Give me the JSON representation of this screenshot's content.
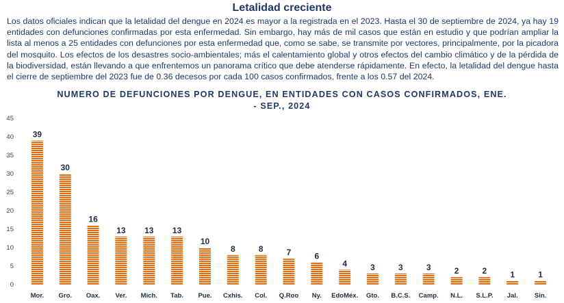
{
  "heading": "Letalidad creciente",
  "paragraph": "Los datos oficiales indican que la letalidad del dengue en 2024 es mayor a la registrada en el 2023. Hasta el 30 de septiembre de 2024, ya hay 19 entidades con defunciones confirmadas por esta enfermedad. Sin embargo, hay más de mil casos que están en estudio y que podrían ampliar la lista al menos a 25 entidades con defunciones por esta enfermedad que, como se sabe, se transmite por vectores, principalmente, por la picadora del mosquito. Los efectos de los desastres socio-ambientales; más el calentamiento global y otros efectos del cambio climático y de la pérdida de la biodiversidad, están llevando a que enfrentemos un panorama crítico que debe atenderse rápidamente. En efecto, la letalidad del dengue hasta el cierre de septiembre del 2023 fue de 0.36 decesos por cada 100 casos confirmados, frente a los 0.57 del 2024.",
  "chart_data": {
    "type": "bar",
    "title_line1": "NUMERO DE DEFUNCIONES POR DENGUE, EN ENTIDADES CON CASOS CONFIRMADOS, ENE.",
    "title_line2": "- SEP., 2024",
    "categories": [
      "Mor.",
      "Gro.",
      "Oax.",
      "Ver.",
      "Mich.",
      "Tab.",
      "Pue.",
      "Cxhis.",
      "Col.",
      "Q.Roo",
      "Ny.",
      "EdoMéx.",
      "Gto.",
      "B.C.S.",
      "Camp.",
      "N.L.",
      "S.L.P.",
      "Jal.",
      "Sin."
    ],
    "values": [
      39,
      30,
      16,
      13,
      13,
      13,
      10,
      8,
      8,
      7,
      6,
      4,
      3,
      3,
      3,
      2,
      2,
      1,
      1
    ],
    "ylim": [
      0,
      45
    ],
    "yticks": [
      0,
      5,
      10,
      15,
      20,
      25,
      30,
      35,
      40,
      45
    ],
    "grid": false,
    "legend": "none",
    "bar_color": "#e46c0a",
    "bar_pattern": "horizontal-stripes"
  }
}
